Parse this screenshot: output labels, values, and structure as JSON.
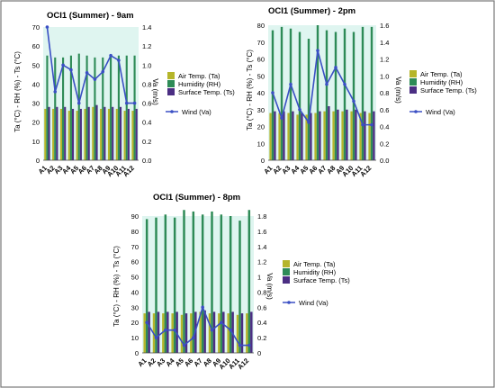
{
  "colors": {
    "air_temp": "#b5b52a",
    "humidity": "#2e8b57",
    "surface_temp": "#4b2e83",
    "wind": "#3a4fc4",
    "plot_bg": "#dff5f0",
    "border": "#666666"
  },
  "legend": {
    "air_temp": "Air Temp. (Ta)",
    "humidity": "Humidity (RH)",
    "surface_temp": "Surface Temp. (Ts)",
    "wind": "Wind (Va)"
  },
  "chart_data": [
    {
      "type": "bar",
      "title": "OCI1 (Summer) - 9am",
      "ylabel": "Ta (°C) - RH (%) - Ts (°C)",
      "y2label": "Va (m/s)",
      "categories": [
        "A1",
        "A2",
        "A3",
        "A4",
        "A5",
        "A6",
        "A7",
        "A8",
        "A9",
        "A10",
        "A11",
        "A12"
      ],
      "ylim": [
        0,
        70
      ],
      "yticks": [
        "0",
        "10",
        "20",
        "30",
        "40",
        "50",
        "60",
        "70"
      ],
      "y2lim": [
        0,
        1.4
      ],
      "y2ticks": [
        "0.0",
        "0.2",
        "0.4",
        "0.6",
        "0.8",
        "1.0",
        "1.2",
        "1.4"
      ],
      "series": [
        {
          "name": "Air Temp. (Ta)",
          "values": [
            27,
            27,
            27,
            26,
            26,
            27,
            28,
            27,
            27,
            27,
            26,
            26
          ]
        },
        {
          "name": "Humidity (RH)",
          "values": [
            55,
            54,
            54,
            55,
            56,
            55,
            54,
            54,
            55,
            55,
            55,
            55
          ]
        },
        {
          "name": "Surface Temp. (Ts)",
          "values": [
            28,
            28,
            28,
            27,
            27,
            28,
            29,
            28,
            28,
            28,
            27,
            27
          ]
        },
        {
          "name": "Wind (Va)",
          "axis": "right",
          "values": [
            1.4,
            0.72,
            1.0,
            0.95,
            0.6,
            0.92,
            0.85,
            0.93,
            1.1,
            1.05,
            0.6,
            0.6
          ]
        }
      ]
    },
    {
      "type": "bar",
      "title": "OCI1 (Summer) - 2pm",
      "ylabel": "Ta (°C) - RH (%) - Ts (°C)",
      "y2label": "Va (m/s)",
      "categories": [
        "A1",
        "A2",
        "A3",
        "A4",
        "A5",
        "A6",
        "A7",
        "A8",
        "A9",
        "A10",
        "A11",
        "A12"
      ],
      "ylim": [
        0,
        80
      ],
      "yticks": [
        "0",
        "10",
        "20",
        "30",
        "40",
        "50",
        "60",
        "70",
        "80"
      ],
      "y2lim": [
        0,
        1.6
      ],
      "y2ticks": [
        "0.0",
        "0.2",
        "0.4",
        "0.6",
        "0.8",
        "1.0",
        "1.2",
        "1.4",
        "1.6"
      ],
      "series": [
        {
          "name": "Air Temp. (Ta)",
          "values": [
            28,
            28,
            28,
            27,
            27,
            28,
            29,
            29,
            29,
            29,
            28,
            28
          ]
        },
        {
          "name": "Humidity (RH)",
          "values": [
            77,
            79,
            78,
            76,
            72,
            80,
            77,
            76,
            78,
            76,
            79,
            79
          ]
        },
        {
          "name": "Surface Temp. (Ts)",
          "values": [
            29,
            29,
            29,
            28,
            28,
            29,
            32,
            30,
            30,
            30,
            29,
            29
          ]
        },
        {
          "name": "Wind (Va)",
          "axis": "right",
          "values": [
            0.8,
            0.5,
            0.9,
            0.6,
            0.45,
            1.3,
            0.9,
            1.1,
            0.9,
            0.7,
            0.42,
            0.42
          ]
        }
      ]
    },
    {
      "type": "bar",
      "title": "OCI1 (Summer) - 8pm",
      "ylabel": "Ta (°C) - RH (%) - Ts (°C)",
      "y2label": "Va (m/s)",
      "categories": [
        "A1",
        "A2",
        "A3",
        "A4",
        "A5",
        "A6",
        "A7",
        "A8",
        "A9",
        "A10",
        "A11",
        "A12"
      ],
      "ylim": [
        0,
        90
      ],
      "yticks": [
        "0",
        "10",
        "20",
        "30",
        "40",
        "50",
        "60",
        "70",
        "80",
        "90"
      ],
      "y2lim": [
        0,
        1.8
      ],
      "y2ticks": [
        "0",
        "0.2",
        "0.4",
        "0.6",
        "0.8",
        "1",
        "1.2",
        "1.4",
        "1.6",
        "1.8"
      ],
      "series": [
        {
          "name": "Air Temp. (Ta)",
          "values": [
            26,
            26,
            26,
            26,
            25,
            26,
            27,
            26,
            26,
            26,
            25,
            26
          ]
        },
        {
          "name": "Humidity (RH)",
          "values": [
            88,
            89,
            91,
            89,
            94,
            93,
            91,
            93,
            91,
            90,
            87,
            94
          ]
        },
        {
          "name": "Surface Temp. (Ts)",
          "values": [
            27,
            27,
            27,
            27,
            26,
            27,
            28,
            27,
            27,
            27,
            26,
            27
          ]
        },
        {
          "name": "Wind (Va)",
          "axis": "right",
          "values": [
            0.4,
            0.2,
            0.3,
            0.3,
            0.1,
            0.2,
            0.6,
            0.3,
            0.4,
            0.3,
            0.1,
            0.1
          ]
        }
      ]
    }
  ]
}
